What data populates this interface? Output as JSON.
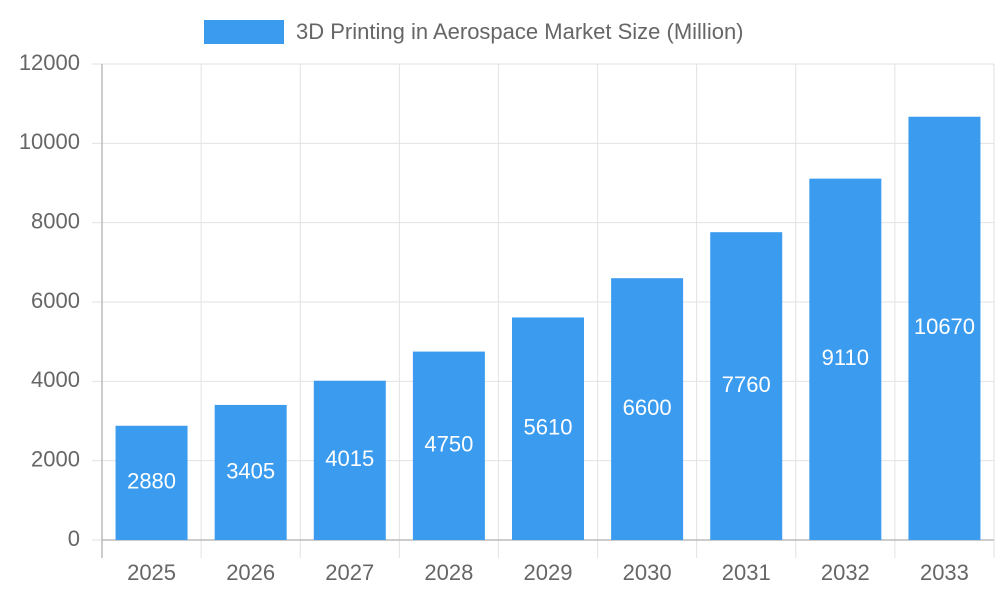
{
  "chart_data": {
    "type": "bar",
    "categories": [
      "2025",
      "2026",
      "2027",
      "2028",
      "2029",
      "2030",
      "2031",
      "2032",
      "2033"
    ],
    "series": [
      {
        "name": "3D Printing in Aerospace Market Size (Million)",
        "color": "#3a9bef",
        "values": [
          2880,
          3405,
          4015,
          4750,
          5610,
          6600,
          7760,
          9110,
          10670
        ]
      }
    ],
    "ylim": [
      0,
      12000
    ],
    "yticks": [
      0,
      2000,
      4000,
      6000,
      8000,
      10000,
      12000
    ],
    "grid": true,
    "legend": "top"
  }
}
